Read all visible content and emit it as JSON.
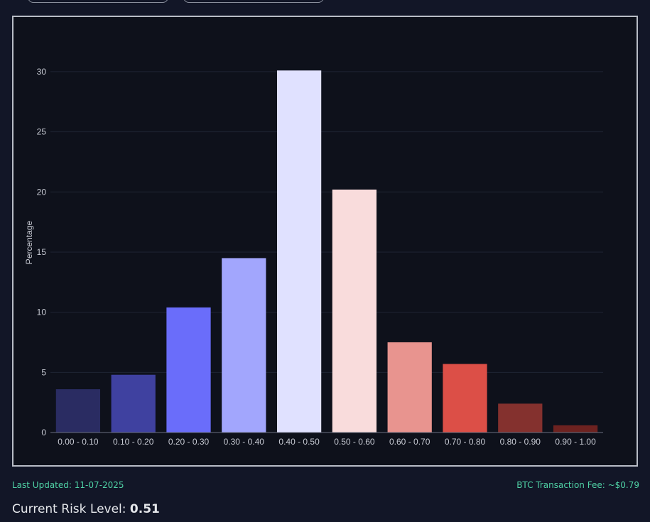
{
  "chart_data": {
    "type": "bar",
    "categories": [
      "0.00 - 0.10",
      "0.10 - 0.20",
      "0.20 - 0.30",
      "0.30 - 0.40",
      "0.40 - 0.50",
      "0.50 - 0.60",
      "0.60 - 0.70",
      "0.70 - 0.80",
      "0.80 - 0.90",
      "0.90 - 1.00"
    ],
    "values": [
      3.6,
      4.8,
      10.4,
      14.5,
      30.1,
      20.2,
      7.5,
      5.7,
      2.4,
      0.6
    ],
    "colors": [
      "#2a2c62",
      "#3f41a0",
      "#6a6dfa",
      "#a2a6fd",
      "#e0e1ff",
      "#f9dcdc",
      "#e8948f",
      "#dc4f47",
      "#84312e",
      "#6d2220"
    ],
    "ylabel": "Percentage",
    "xlabel": "",
    "ylim": [
      0,
      31
    ],
    "yticks": [
      0,
      5,
      10,
      15,
      20,
      25,
      30
    ],
    "grid": true
  },
  "footer": {
    "last_updated": "Last Updated: 11-07-2025",
    "fee": "BTC Transaction Fee: ~$0.79"
  },
  "risk": {
    "label": "Current Risk Level:",
    "value": "0.51"
  }
}
